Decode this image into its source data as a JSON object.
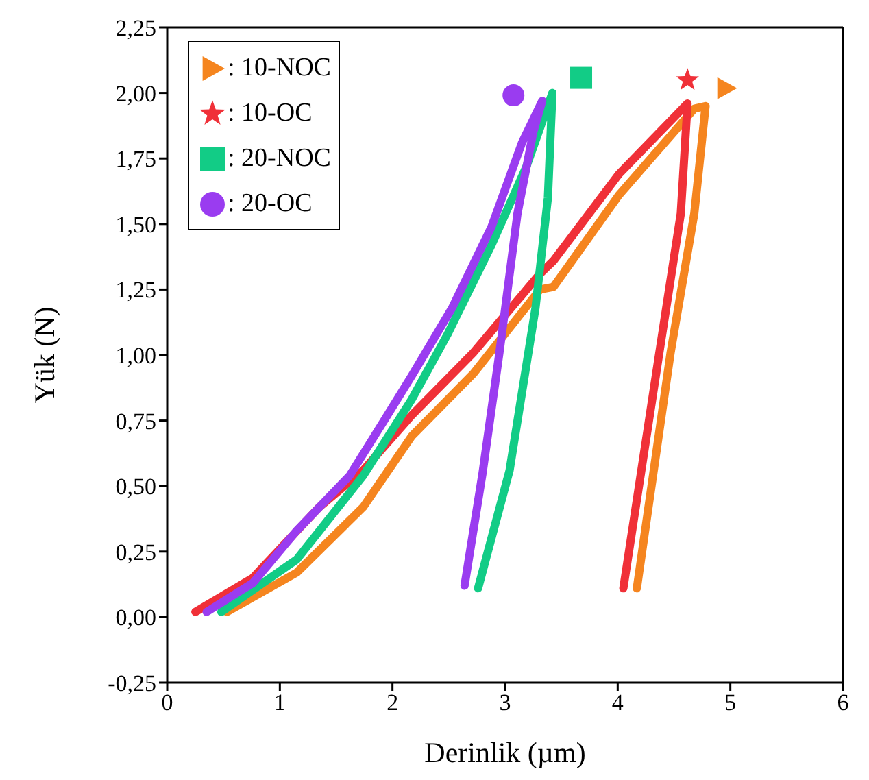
{
  "chart_data": {
    "type": "line",
    "xlabel": "Derinlik (µm)",
    "ylabel": "Yük (N)",
    "xlim": [
      0,
      6
    ],
    "xticks": [
      0,
      1,
      2,
      3,
      4,
      5,
      6
    ],
    "ylim": [
      -0.25,
      2.25
    ],
    "yticks": [
      {
        "value": -0.25,
        "label": "-0,25"
      },
      {
        "value": 0,
        "label": "0,00"
      },
      {
        "value": 0.25,
        "label": "0,25"
      },
      {
        "value": 0.5,
        "label": "0,50"
      },
      {
        "value": 0.75,
        "label": "0,75"
      },
      {
        "value": 1,
        "label": "1,00"
      },
      {
        "value": 1.25,
        "label": "1,25"
      },
      {
        "value": 1.5,
        "label": "1,50"
      },
      {
        "value": 1.75,
        "label": "1,75"
      },
      {
        "value": 2,
        "label": "2,00"
      },
      {
        "value": 2.25,
        "label": "2,25"
      }
    ],
    "grid": false,
    "legend": "top left",
    "line_style": "solid",
    "series": [
      {
        "name": ": 10-NOC",
        "color": "#f5851f",
        "x": [
          0.53,
          1.15,
          1.74,
          2.17,
          2.72,
          3.31,
          3.43,
          4.01,
          4.68,
          4.78,
          4.68,
          4.47,
          4.17
        ],
        "values": [
          0.02,
          0.17,
          0.42,
          0.69,
          0.93,
          1.25,
          1.26,
          1.61,
          1.94,
          1.95,
          1.54,
          1.01,
          0.11
        ]
      },
      {
        "name": ": 10-OC",
        "color": "#f03038",
        "x": [
          0.25,
          0.76,
          1.35,
          1.74,
          2.17,
          2.72,
          3.31,
          3.43,
          4.01,
          4.62,
          4.56,
          4.37,
          4.05
        ],
        "values": [
          0.02,
          0.15,
          0.42,
          0.56,
          0.77,
          1.01,
          1.31,
          1.36,
          1.69,
          1.96,
          1.54,
          1.01,
          0.11
        ]
      },
      {
        "name": ": 20-NOC",
        "color": "#12cc86",
        "x": [
          0.48,
          1.15,
          1.74,
          2.17,
          2.49,
          2.88,
          3.19,
          3.42,
          3.38,
          3.27,
          3.04,
          2.76
        ],
        "values": [
          0.02,
          0.22,
          0.54,
          0.83,
          1.08,
          1.42,
          1.72,
          2.0,
          1.6,
          1.18,
          0.56,
          0.11
        ]
      },
      {
        "name": ": 20-OC",
        "color": "#9a3cf0",
        "x": [
          0.35,
          0.76,
          1.15,
          1.62,
          1.94,
          2.17,
          2.53,
          2.88,
          3.15,
          3.33,
          3.25,
          3.11,
          2.95,
          2.8,
          2.64
        ],
        "values": [
          0.02,
          0.13,
          0.33,
          0.54,
          0.76,
          0.92,
          1.18,
          1.49,
          1.81,
          1.97,
          1.85,
          1.54,
          1.01,
          0.55,
          0.12
        ]
      }
    ]
  }
}
